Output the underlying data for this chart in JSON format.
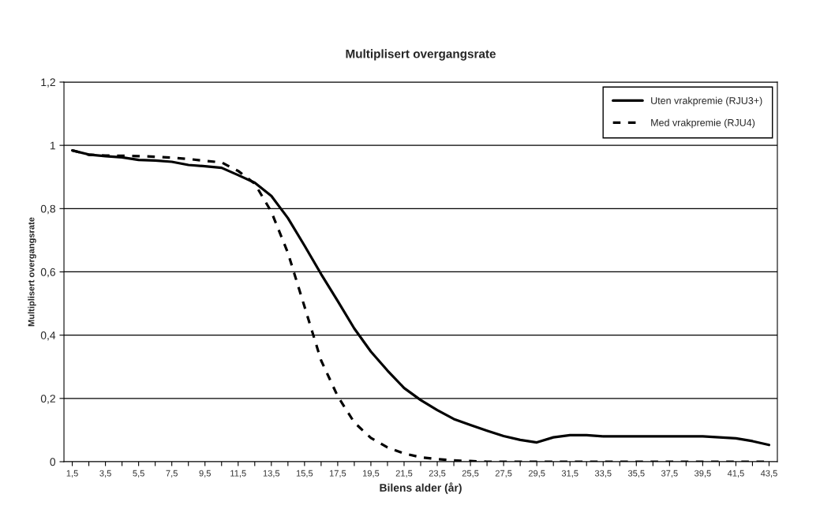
{
  "chart_data": {
    "type": "line",
    "title": "Multiplisert overgangsrate",
    "xlabel": "Bilens alder (år)",
    "ylabel": "Multiplisert overgangsrate",
    "categories": [
      "1,5",
      null,
      "3,5",
      null,
      "5,5",
      null,
      "7,5",
      null,
      "9,5",
      null,
      "11,5",
      null,
      "13,5",
      null,
      "15,5",
      null,
      "17,5",
      null,
      "19,5",
      null,
      "21,5",
      null,
      "23,5",
      null,
      "25,5",
      null,
      "27,5",
      null,
      "29,5",
      null,
      "31,5",
      null,
      "33,5",
      null,
      "35,5",
      null,
      "37,5",
      null,
      "39,5",
      null,
      "41,5",
      null,
      "43,5"
    ],
    "series": [
      {
        "name": "Uten vrakpremie (RJU3+)",
        "color": "#000000",
        "line_style": "solid",
        "values": [
          0.984,
          0.971,
          0.966,
          0.962,
          0.954,
          0.952,
          0.948,
          0.938,
          0.934,
          0.929,
          0.906,
          0.882,
          0.84,
          0.77,
          0.683,
          0.593,
          0.508,
          0.421,
          0.348,
          0.288,
          0.233,
          0.195,
          0.163,
          0.135,
          0.116,
          0.098,
          0.081,
          0.069,
          0.061,
          0.077,
          0.084,
          0.084,
          0.08,
          0.08,
          0.08,
          0.08,
          0.08,
          0.08,
          0.08,
          0.077,
          0.074,
          0.065,
          0.053
        ]
      },
      {
        "name": "Med vrakpremie (RJU4)",
        "color": "#000000",
        "line_style": "dashed",
        "values": [
          0.984,
          0.97,
          0.968,
          0.967,
          0.966,
          0.964,
          0.961,
          0.957,
          0.951,
          0.946,
          0.919,
          0.879,
          0.79,
          0.66,
          0.49,
          0.32,
          0.207,
          0.124,
          0.075,
          0.045,
          0.026,
          0.014,
          0.008,
          0.004,
          0.002,
          0,
          0,
          0,
          0,
          0,
          0,
          0,
          0,
          0,
          0,
          0,
          0,
          0,
          0,
          0,
          0,
          0,
          0
        ]
      }
    ],
    "ylim": [
      0,
      1.2
    ],
    "yticks": [
      0,
      {
        "value": 0.2,
        "label": "0,2"
      },
      {
        "value": 0.4,
        "label": "0,4"
      },
      {
        "value": 0.6,
        "label": "0,6"
      },
      {
        "value": 0.8,
        "label": "0,8"
      },
      1,
      {
        "value": 1.2,
        "label": "1,2"
      }
    ],
    "grid": "y",
    "legend": "top right",
    "marker": "none"
  }
}
